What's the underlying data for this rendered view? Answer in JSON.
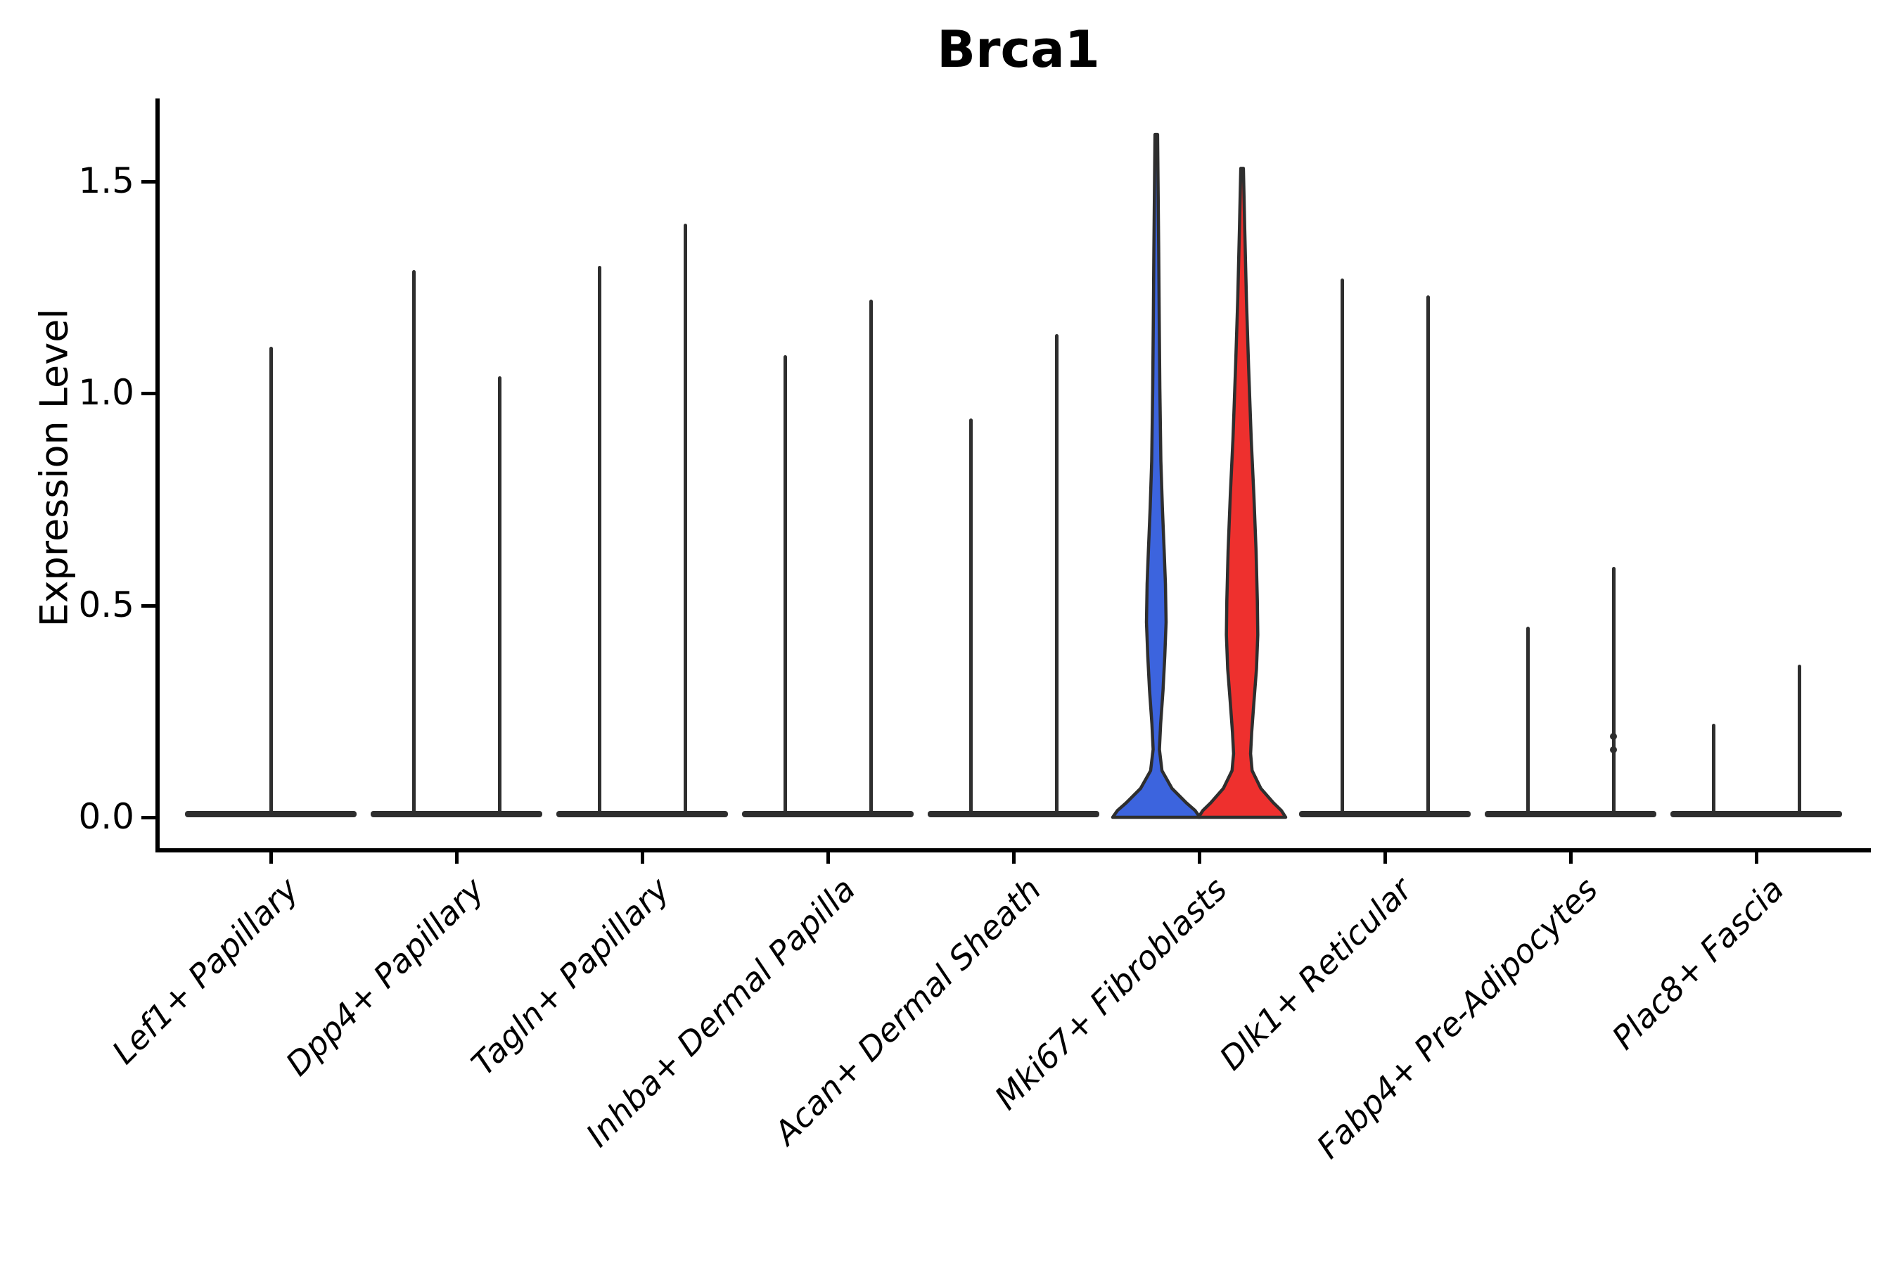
{
  "figure": {
    "title": "Brca1",
    "y_axis_label": "Expression Level"
  },
  "chart_data": {
    "type": "violin",
    "title": "Brca1",
    "xlabel": "",
    "ylabel": "Expression Level",
    "ytick_labels": [
      "0.0",
      "0.5",
      "1.0",
      "1.5"
    ],
    "ytick_values": [
      0.0,
      0.5,
      1.0,
      1.5
    ],
    "ylim": [
      0,
      1.7
    ],
    "legend": "none",
    "grid": false,
    "outline_color": "#2E2E2E",
    "group_colors": {
      "left": "#3C64DE",
      "right": "#EE302E"
    },
    "description": "Split violin plot of Brca1 expression per fibroblast subtype; most populations collapse to a spike at 0 with a thin tail up to the max expressing cell. Only Mki67+ Fibroblasts show filled blue (left) and red (right) violins.",
    "categories": [
      {
        "label": "Lef1+ Papillary",
        "violins": [
          {
            "position": "center",
            "shape": "spike",
            "max": 1.11
          }
        ]
      },
      {
        "label": "Dpp4+ Papillary",
        "violins": [
          {
            "position": "left",
            "shape": "spike",
            "max": 1.29
          },
          {
            "position": "right",
            "shape": "spike",
            "max": 1.04
          }
        ]
      },
      {
        "label": "Tagln+ Papillary",
        "violins": [
          {
            "position": "left",
            "shape": "spike",
            "max": 1.3
          },
          {
            "position": "right",
            "shape": "spike",
            "max": 1.4
          }
        ]
      },
      {
        "label": "Inhba+ Dermal Papilla",
        "violins": [
          {
            "position": "left",
            "shape": "spike",
            "max": 1.09
          },
          {
            "position": "right",
            "shape": "spike",
            "max": 1.22
          }
        ]
      },
      {
        "label": "Acan+ Dermal Sheath",
        "violins": [
          {
            "position": "left",
            "shape": "spike",
            "max": 0.94
          },
          {
            "position": "right",
            "shape": "spike",
            "max": 1.14
          }
        ]
      },
      {
        "label": "Mki67+ Fibroblasts",
        "violins": [
          {
            "position": "left",
            "shape": "violin",
            "fill": "#3C64DE",
            "max": 1.61,
            "profile": [
              [
                1.61,
                0.03
              ],
              [
                1.5,
                0.04
              ],
              [
                1.34,
                0.055
              ],
              [
                1.17,
                0.068
              ],
              [
                1.01,
                0.082
              ],
              [
                0.84,
                0.105
              ],
              [
                0.73,
                0.14
              ],
              [
                0.63,
                0.18
              ],
              [
                0.55,
                0.21
              ],
              [
                0.46,
                0.225
              ],
              [
                0.38,
                0.195
              ],
              [
                0.3,
                0.155
              ],
              [
                0.22,
                0.1
              ],
              [
                0.16,
                0.072
              ],
              [
                0.11,
                0.13
              ],
              [
                0.068,
                0.36
              ],
              [
                0.034,
                0.69
              ],
              [
                0.016,
                0.89
              ],
              [
                0.0,
                1.0
              ]
            ]
          },
          {
            "position": "right",
            "shape": "violin",
            "fill": "#EE302E",
            "max": 1.53,
            "profile": [
              [
                1.53,
                0.03
              ],
              [
                1.39,
                0.06
              ],
              [
                1.22,
                0.1
              ],
              [
                1.06,
                0.15
              ],
              [
                0.89,
                0.21
              ],
              [
                0.76,
                0.27
              ],
              [
                0.63,
                0.32
              ],
              [
                0.51,
                0.35
              ],
              [
                0.43,
                0.36
              ],
              [
                0.35,
                0.33
              ],
              [
                0.27,
                0.27
              ],
              [
                0.2,
                0.22
              ],
              [
                0.15,
                0.195
              ],
              [
                0.11,
                0.23
              ],
              [
                0.068,
                0.43
              ],
              [
                0.034,
                0.72
              ],
              [
                0.016,
                0.9
              ],
              [
                0.0,
                1.0
              ]
            ]
          }
        ]
      },
      {
        "label": "Dlk1+ Reticular",
        "violins": [
          {
            "position": "left",
            "shape": "spike",
            "max": 1.27
          },
          {
            "position": "right",
            "shape": "spike",
            "max": 1.23
          }
        ]
      },
      {
        "label": "Fabp4+ Pre-Adipocytes",
        "violins": [
          {
            "position": "left",
            "shape": "spike",
            "max": 0.45
          },
          {
            "position": "right",
            "shape": "spike",
            "max": 0.59,
            "points": [
              0.19,
              0.16
            ]
          }
        ]
      },
      {
        "label": "Plac8+ Fascia",
        "violins": [
          {
            "position": "left",
            "shape": "spike",
            "max": 0.22
          },
          {
            "position": "right",
            "shape": "spike",
            "max": 0.36
          }
        ]
      }
    ]
  }
}
